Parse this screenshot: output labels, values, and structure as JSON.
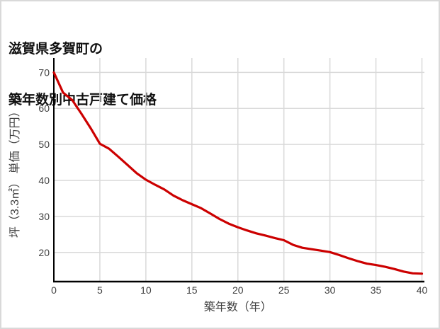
{
  "page": {
    "title_line1": "滋賀県多賀町の",
    "title_line2": "築年数別中古戸建て価格"
  },
  "chart_data": {
    "type": "line",
    "title": "滋賀県多賀町の 築年数別中古戸建て価格",
    "xlabel": "築年数（年）",
    "ylabel": "坪（3.3㎡） 単価（万円）",
    "xlim": [
      0,
      40
    ],
    "ylim": [
      12,
      74
    ],
    "x_ticks": [
      0,
      5,
      10,
      15,
      20,
      25,
      30,
      35,
      40
    ],
    "y_ticks": [
      20,
      30,
      40,
      50,
      60,
      70
    ],
    "grid": true,
    "legend": "none",
    "x": [
      0,
      1,
      2,
      3,
      4,
      5,
      6,
      7,
      8,
      9,
      10,
      11,
      12,
      13,
      14,
      15,
      16,
      17,
      18,
      19,
      20,
      21,
      22,
      23,
      24,
      25,
      26,
      27,
      28,
      29,
      30,
      31,
      32,
      33,
      34,
      35,
      36,
      37,
      38,
      39,
      40
    ],
    "values": [
      70.0,
      64.4,
      62.3,
      58.5,
      54.5,
      50.2,
      48.8,
      46.6,
      44.3,
      42.0,
      40.2,
      38.8,
      37.5,
      35.8,
      34.5,
      33.4,
      32.3,
      30.8,
      29.3,
      28.0,
      27.0,
      26.1,
      25.3,
      24.7,
      24.0,
      23.4,
      22.1,
      21.3,
      20.9,
      20.5,
      20.1,
      19.3,
      18.4,
      17.6,
      16.9,
      16.5,
      16.0,
      15.4,
      14.7,
      14.2,
      14.1
    ]
  },
  "colors": {
    "line": "#cc0000",
    "grid": "#d9d9d9",
    "axis": "#000000",
    "tick_text": "#404040",
    "title_text": "#111111",
    "background": "#ffffff",
    "page_border": "#d9d9d9"
  }
}
